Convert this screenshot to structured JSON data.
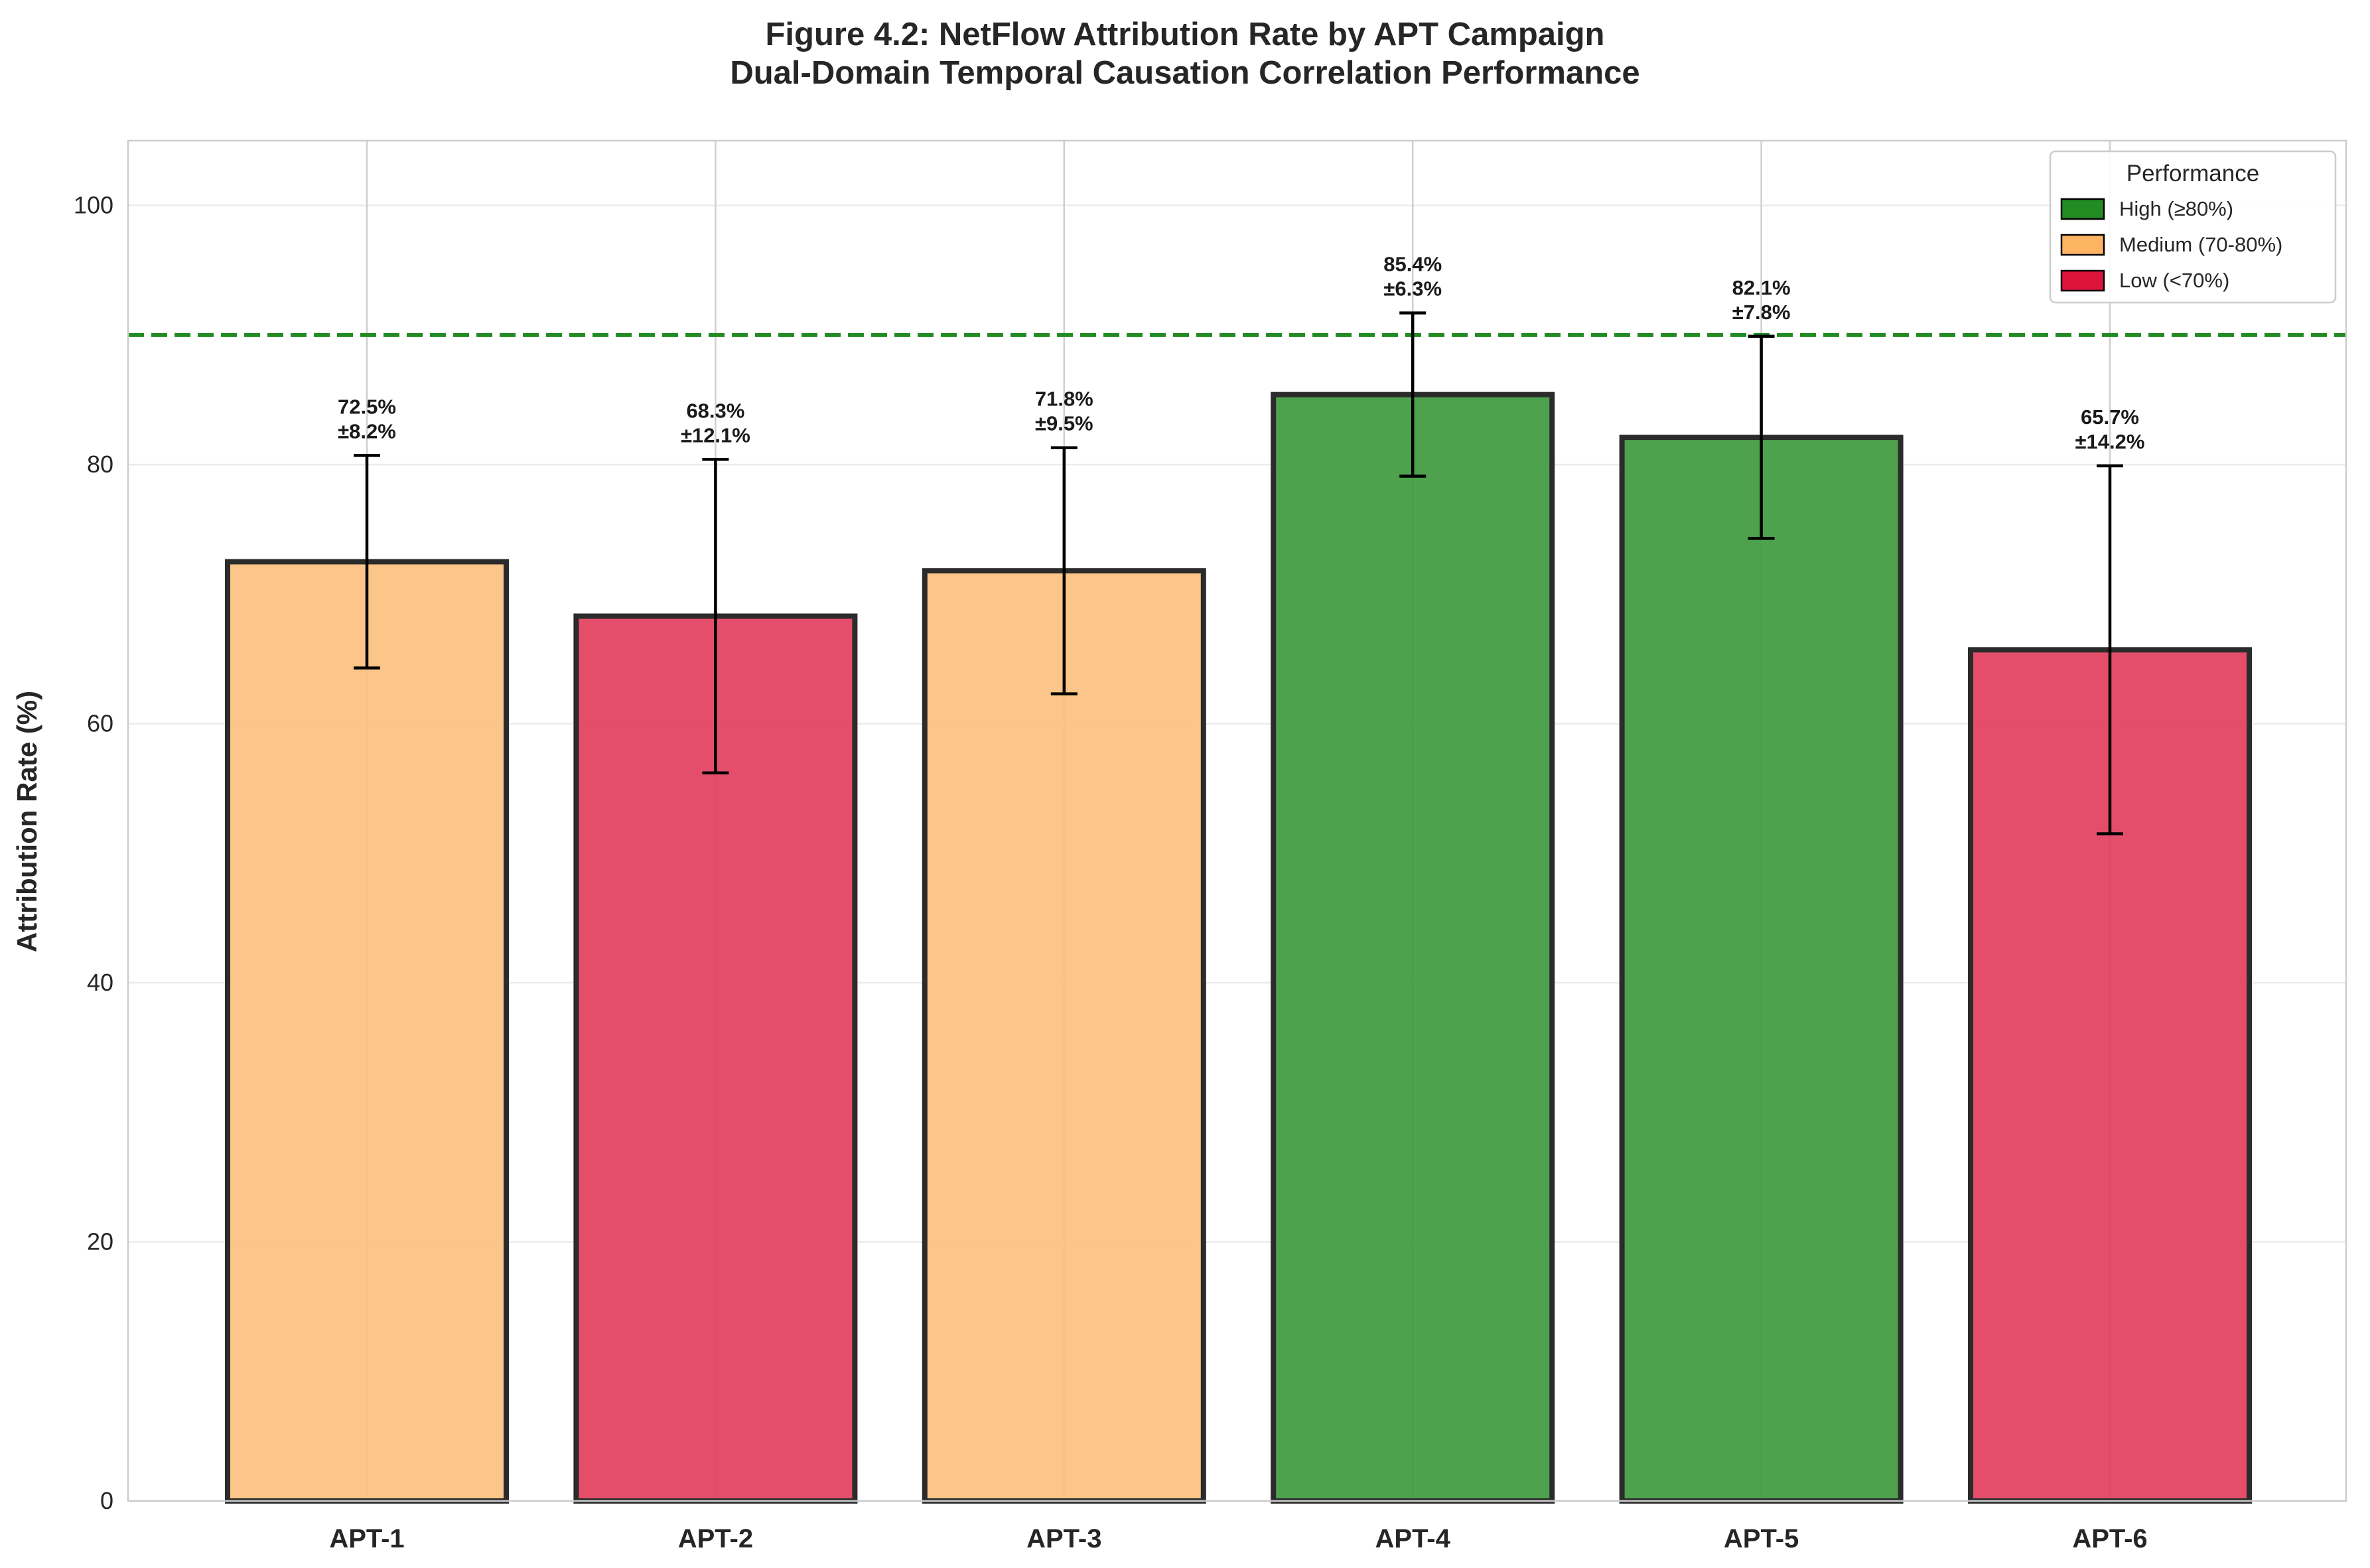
{
  "chart_data": {
    "type": "bar",
    "title_line1": "Figure 4.2: NetFlow Attribution Rate by APT Campaign",
    "title_line2": "Dual-Domain Temporal Causation Correlation Performance",
    "xlabel": "",
    "ylabel": "Attribution Rate (%)",
    "ylim": [
      0,
      105
    ],
    "yticks": [
      0,
      20,
      40,
      60,
      80,
      100
    ],
    "grid": true,
    "categories": [
      "APT-1",
      "APT-2",
      "APT-3",
      "APT-4",
      "APT-5",
      "APT-6"
    ],
    "values": [
      72.5,
      68.3,
      71.8,
      85.4,
      82.1,
      65.7
    ],
    "errors": [
      8.2,
      12.1,
      9.5,
      6.3,
      7.8,
      14.2
    ],
    "value_labels": [
      "72.5%",
      "68.3%",
      "71.8%",
      "85.4%",
      "82.1%",
      "65.7%"
    ],
    "error_labels": [
      "±8.2%",
      "±12.1%",
      "±9.5%",
      "±6.3%",
      "±7.8%",
      "±14.2%"
    ],
    "performance_levels": [
      "medium",
      "low",
      "medium",
      "high",
      "high",
      "low"
    ],
    "reference_line": {
      "value": 90,
      "color": "#228b22",
      "style": "dashed"
    },
    "legend": {
      "title": "Performance",
      "placement": "top-right",
      "entries": [
        {
          "key": "high",
          "label": "High (≥80%)",
          "color": "#228b22"
        },
        {
          "key": "medium",
          "label": "Medium (70-80%)",
          "color": "#fdb462"
        },
        {
          "key": "low",
          "label": "Low (<70%)",
          "color": "#dc143c"
        }
      ]
    },
    "colors": {
      "high": "#3f9a3f",
      "medium": "#fcc07f",
      "low": "#e23f5e",
      "bar_edge": "#2b2b2b"
    }
  }
}
